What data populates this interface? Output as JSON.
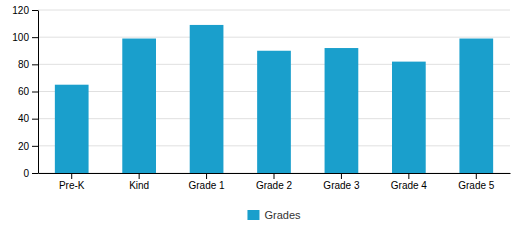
{
  "chart_data": {
    "type": "bar",
    "categories": [
      "Pre-K",
      "Kind",
      "Grade 1",
      "Grade 2",
      "Grade 3",
      "Grade 4",
      "Grade 5"
    ],
    "series": [
      {
        "name": "Grades",
        "color": "#1a9fcc",
        "values": [
          65,
          99,
          109,
          90,
          92,
          82,
          99
        ]
      }
    ],
    "ylim": [
      0,
      120
    ],
    "yticks": [
      0,
      20,
      40,
      60,
      80,
      100,
      120
    ],
    "grid": true,
    "legend": "bottom"
  }
}
